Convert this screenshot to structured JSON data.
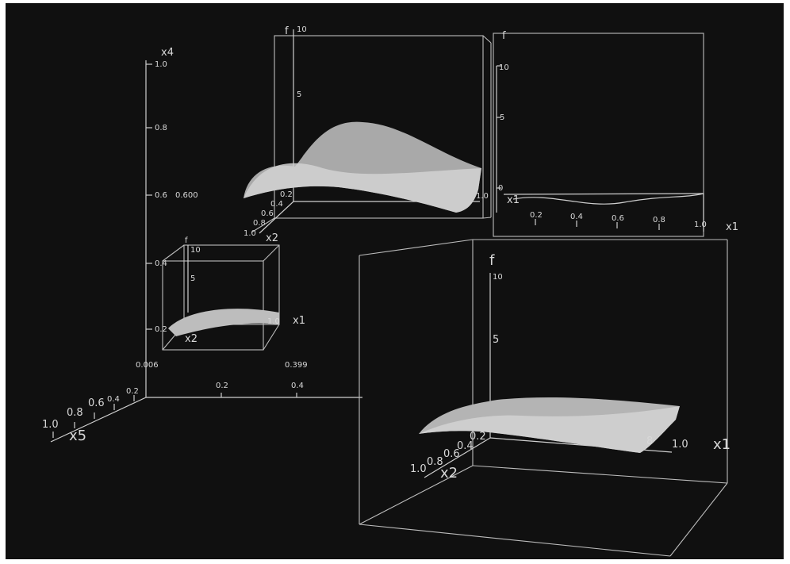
{
  "colors": {
    "background": "#101010",
    "axis": "#cfcfcf",
    "surface": "#bfbfbf"
  },
  "main_axes": {
    "x4_label": "x4",
    "x5_label": "x5",
    "x4_ticks": [
      "1.0",
      "0.8",
      "0.6",
      "0.4",
      "0.2"
    ],
    "x4_value": "0.600",
    "x5_ticks": [
      "1.0",
      "0.8",
      "0.6",
      "0.4",
      "0.2"
    ],
    "x3_ticks": [
      "0.2",
      "0.4"
    ],
    "x3_value": "0.399",
    "origin_value": "0.006"
  },
  "top_center": {
    "f_label": "f",
    "f_ticks": [
      "10",
      "5"
    ],
    "x2_label": "x2",
    "x2_ticks": [
      "1.0",
      "0.8",
      "0.6",
      "0.4",
      "0.2"
    ],
    "x1_tick": "1.0"
  },
  "top_right": {
    "f_label": "f",
    "f_ticks": [
      "10",
      "5",
      "0"
    ],
    "x1_label": "x1",
    "x1_inner_label": "x1",
    "x1_ticks": [
      "0.2",
      "0.4",
      "0.6",
      "0.8",
      "1.0"
    ]
  },
  "small_box": {
    "f_label": "f",
    "f_ticks": [
      "10",
      "5"
    ],
    "x1_label": "x1",
    "x1_tick": "1.0",
    "x2_label": "x2"
  },
  "bottom_right": {
    "f_label": "f",
    "f_ticks": [
      "10",
      "5"
    ],
    "x1_label": "x1",
    "x1_tick": "1.0",
    "x1_partial_tick": "8",
    "x2_label": "x2",
    "x2_ticks": [
      "1.0",
      "0.8",
      "0.6",
      "0.4",
      "0.2"
    ]
  }
}
